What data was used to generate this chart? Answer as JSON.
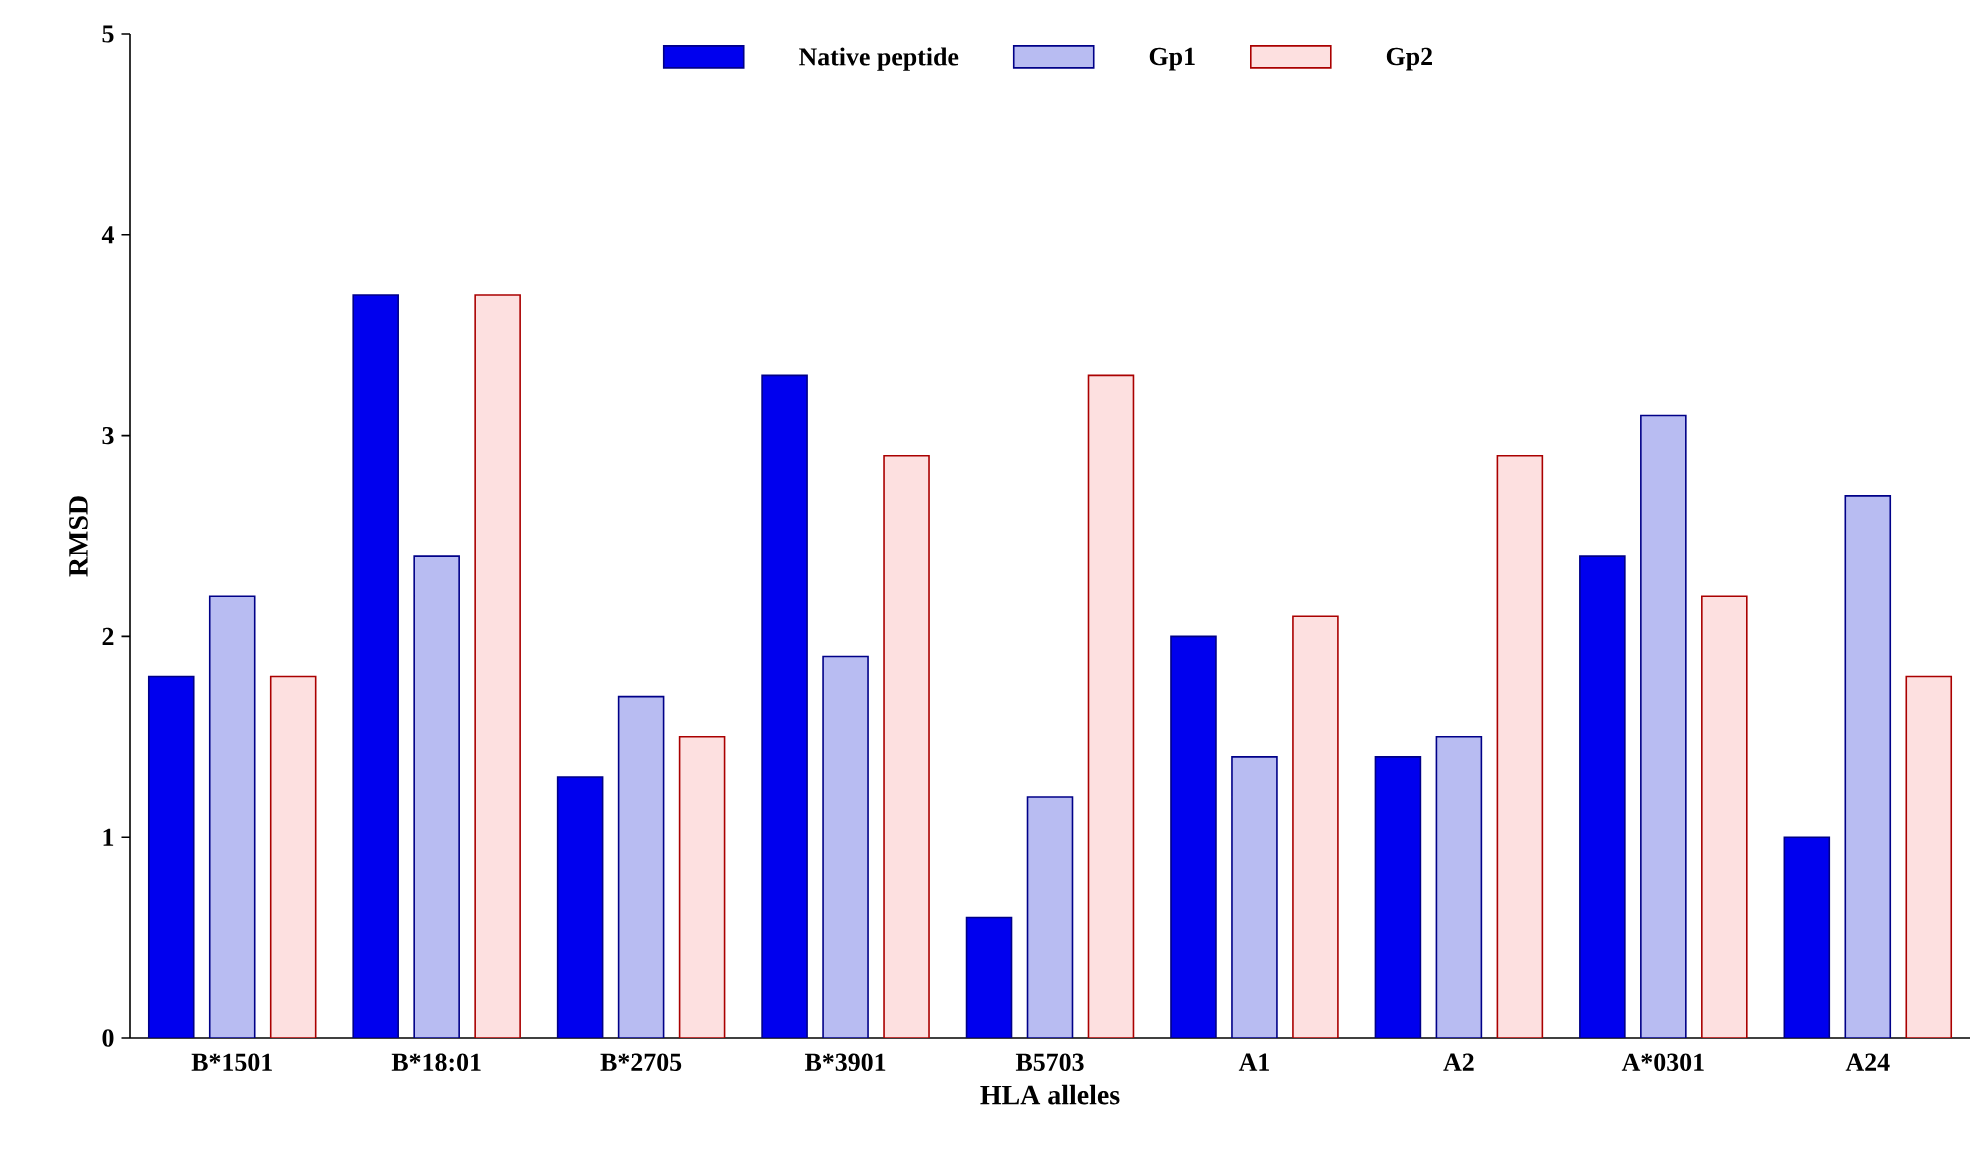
{
  "chart_data": {
    "type": "bar",
    "xlabel": "HLA alleles",
    "ylabel": "RMSD",
    "categories": [
      "B*1501",
      "B*18:01",
      "B*2705",
      "B*3901",
      "B5703",
      "A1",
      "A2",
      "A*0301",
      "A24"
    ],
    "series": [
      {
        "name": "Native peptide",
        "color": "#0000ee",
        "values": [
          1.8,
          3.7,
          1.3,
          3.3,
          0.6,
          2.0,
          1.4,
          2.4,
          1.0
        ]
      },
      {
        "name": "Gp1",
        "color": "#b8bcf2",
        "values": [
          2.2,
          2.4,
          1.7,
          1.9,
          1.2,
          1.4,
          1.5,
          3.1,
          2.7
        ]
      },
      {
        "name": "Gp2",
        "color": "#fde0e0",
        "values": [
          1.8,
          3.7,
          1.5,
          2.9,
          3.3,
          2.1,
          2.9,
          2.2,
          1.8
        ]
      }
    ],
    "ylim": [
      0,
      5
    ],
    "yticks": [
      0,
      1,
      2,
      3,
      4,
      5
    ],
    "grid": false,
    "legend": "top"
  }
}
